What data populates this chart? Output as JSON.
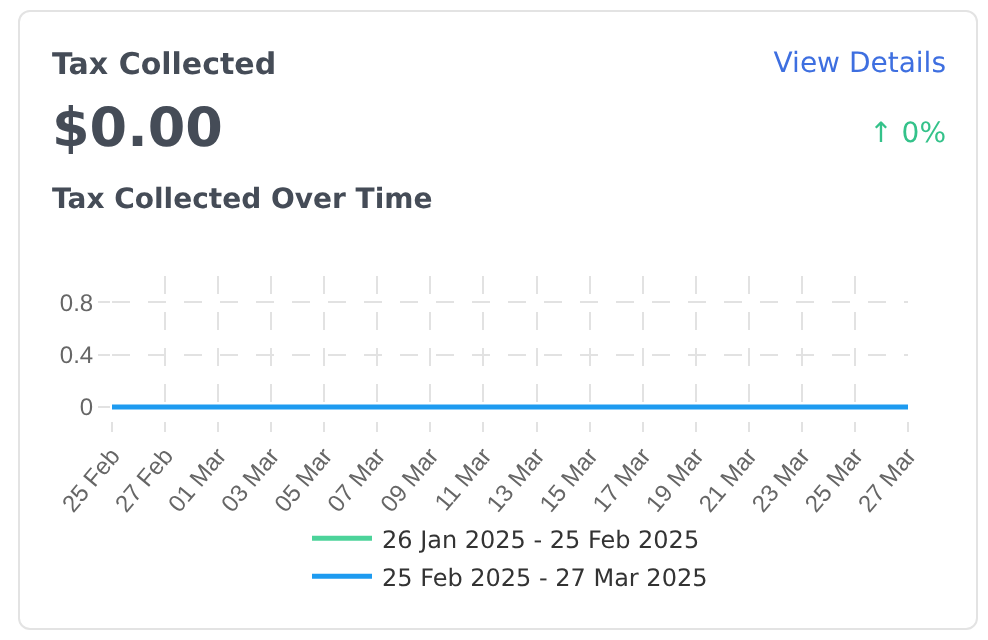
{
  "chart_data": {
    "type": "line",
    "title": "Tax Collected",
    "subtitle": "Tax Collected Over Time",
    "annotations": [
      "View Details",
      "$0.00",
      "↑ 0%"
    ],
    "categories": [
      "25 Feb",
      "27 Feb",
      "01 Mar",
      "03 Mar",
      "05 Mar",
      "07 Mar",
      "09 Mar",
      "11 Mar",
      "13 Mar",
      "15 Mar",
      "17 Mar",
      "19 Mar",
      "21 Mar",
      "23 Mar",
      "25 Mar",
      "27 Mar"
    ],
    "series": [
      {
        "name": "26 Jan 2025 - 25 Feb 2025",
        "color": "#4cd39a",
        "values": [
          null,
          null,
          null,
          null,
          null,
          null,
          null,
          null,
          null,
          null,
          null,
          null,
          null,
          null,
          null,
          null
        ]
      },
      {
        "name": "25 Feb 2025 - 27 Mar 2025",
        "color": "#1e9bf0",
        "values": [
          0,
          0,
          0,
          0,
          0,
          0,
          0,
          0,
          0,
          0,
          0,
          0,
          0,
          0,
          0,
          0
        ]
      }
    ],
    "ylim": [
      -0.1,
      1
    ],
    "yticks": [
      0,
      0.4,
      0.8
    ],
    "grid": true,
    "legend": "bottom",
    "marker": "none",
    "line_style": "solid"
  }
}
